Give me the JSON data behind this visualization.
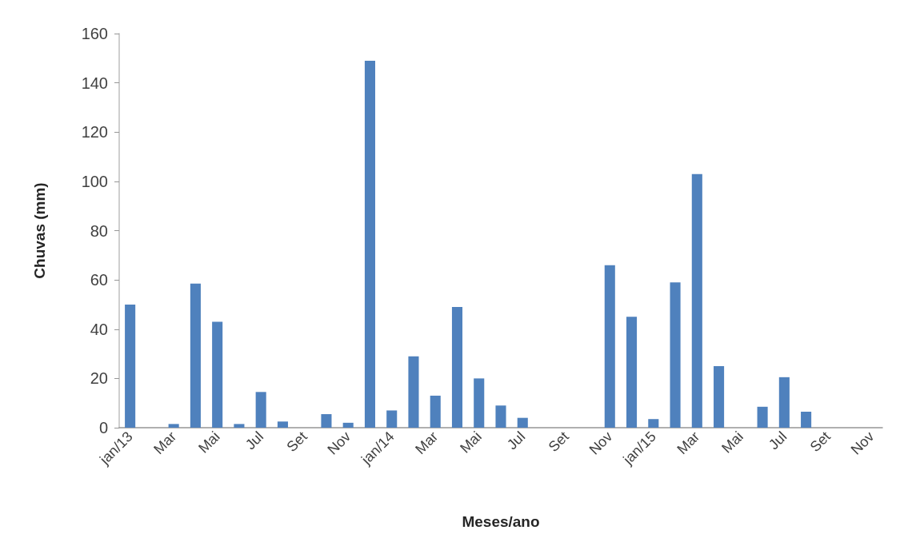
{
  "chart_data": {
    "type": "bar",
    "xlabel": "Meses/ano",
    "ylabel": "Chuvas (mm)",
    "categories": [
      "jan/13",
      null,
      "Mar",
      null,
      "Mai",
      null,
      "Jul",
      null,
      "Set",
      null,
      "Nov",
      null,
      "jan/14",
      null,
      "Mar",
      null,
      "Mai",
      null,
      "Jul",
      null,
      "Set",
      null,
      "Nov",
      null,
      "jan/15",
      null,
      "Mar",
      null,
      "Mai",
      null,
      "Jul",
      null,
      "Set",
      null,
      "Nov"
    ],
    "values": [
      50,
      0,
      1.5,
      58.5,
      43,
      1.5,
      14.5,
      2.5,
      0,
      5.5,
      2,
      149,
      7,
      29,
      13,
      49,
      20,
      9,
      4,
      0,
      0,
      0,
      66,
      45,
      3.5,
      59,
      103,
      25,
      0,
      8.5,
      20.5,
      6.5,
      0,
      0,
      0
    ],
    "color": "#4f81bd",
    "ylim": [
      0,
      160
    ],
    "yticks": [
      0,
      20,
      40,
      60,
      80,
      100,
      120,
      140,
      160
    ],
    "grid": false
  }
}
